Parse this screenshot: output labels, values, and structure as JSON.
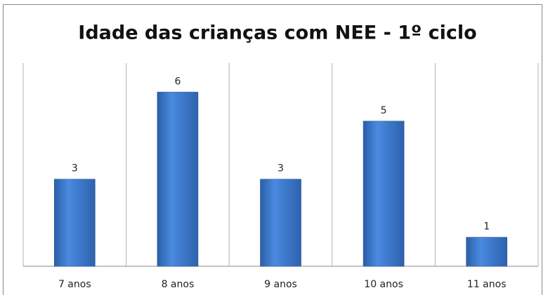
{
  "chart_data": {
    "type": "bar",
    "title": "Idade das crianças com NEE - 1º ciclo",
    "categories": [
      "7 anos",
      "8 anos",
      "9 anos",
      "10 anos",
      "11 anos"
    ],
    "values": [
      3,
      6,
      3,
      5,
      1
    ],
    "color": "#3a78cc",
    "ylim": [
      0,
      7
    ]
  }
}
